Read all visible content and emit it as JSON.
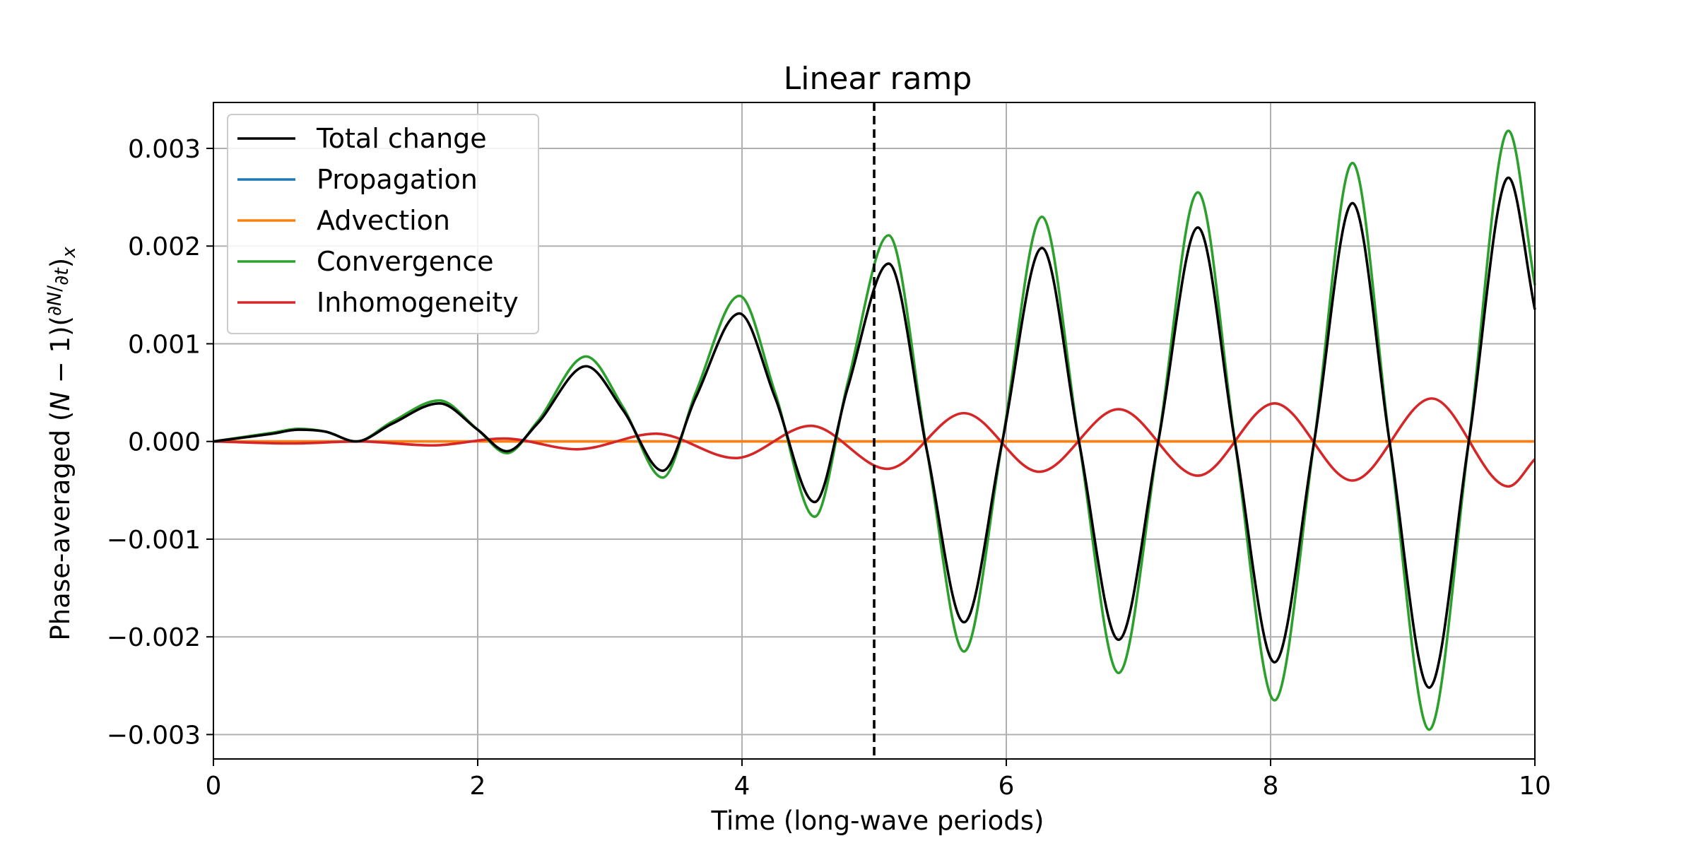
{
  "chart_data": {
    "type": "line",
    "title": "Linear ramp",
    "xlabel": "Time (long-wave periods)",
    "ylabel": "Phase-averaged (N − 1)(∂N/∂t)ₓ",
    "xlim": [
      0,
      10
    ],
    "ylim": [
      -0.00325,
      0.00347
    ],
    "xticks": [
      0,
      2,
      4,
      6,
      8,
      10
    ],
    "xtick_labels": [
      "0",
      "2",
      "4",
      "6",
      "8",
      "10"
    ],
    "yticks": [
      -0.003,
      -0.002,
      -0.001,
      0.0,
      0.001,
      0.002,
      0.003
    ],
    "ytick_labels": [
      "−0.003",
      "−0.002",
      "−0.001",
      "0.000",
      "0.001",
      "0.002",
      "0.003"
    ],
    "grid": true,
    "legend_position": "upper-left",
    "vline": {
      "x": 5,
      "style": "dashed",
      "color": "#000000"
    },
    "series": [
      {
        "name": "Total change",
        "color": "#000000",
        "x": [
          0,
          0.45,
          0.64,
          0.85,
          1.08,
          1.35,
          1.71,
          2.0,
          2.22,
          2.45,
          2.82,
          3.1,
          3.4,
          3.65,
          3.98,
          4.25,
          4.55,
          4.8,
          5.11,
          5.4,
          5.68,
          5.97,
          6.27,
          6.55,
          6.85,
          7.15,
          7.45,
          7.73,
          8.03,
          8.33,
          8.62,
          8.9,
          9.2,
          9.5,
          9.8,
          10.0
        ],
        "y": [
          0,
          8e-05,
          0.00012,
          0.0001,
          0.0,
          0.00018,
          0.00039,
          0.00012,
          -0.0001,
          0.00018,
          0.00077,
          0.00032,
          -0.0003,
          0.00045,
          0.00131,
          0.00045,
          -0.00062,
          0.00055,
          0.00182,
          -0.0001,
          -0.00185,
          0.0,
          0.00198,
          0.0,
          -0.00203,
          0.0,
          0.00219,
          0.0,
          -0.00226,
          0.0,
          0.00244,
          0.0,
          -0.00252,
          0.0,
          0.0027,
          0.00135
        ]
      },
      {
        "name": "Propagation",
        "color": "#1f77b4",
        "x": [
          0,
          10
        ],
        "y": [
          0,
          0
        ]
      },
      {
        "name": "Advection",
        "color": "#ff7f0e",
        "x": [
          0,
          1,
          2,
          3,
          4,
          5,
          6,
          7,
          8,
          9,
          10
        ],
        "y": [
          0,
          0,
          0,
          0,
          0,
          0,
          0,
          0,
          0,
          0,
          0
        ]
      },
      {
        "name": "Convergence",
        "color": "#2ca02c",
        "x": [
          0,
          0.45,
          0.64,
          0.85,
          1.08,
          1.35,
          1.71,
          2.0,
          2.22,
          2.45,
          2.82,
          3.1,
          3.4,
          3.65,
          3.98,
          4.25,
          4.55,
          4.8,
          5.11,
          5.4,
          5.68,
          5.97,
          6.27,
          6.55,
          6.85,
          7.15,
          7.45,
          7.73,
          8.03,
          8.33,
          8.62,
          8.9,
          9.2,
          9.5,
          9.8,
          10.0
        ],
        "y": [
          0,
          9e-05,
          0.00013,
          0.0001,
          0.0,
          0.0002,
          0.00042,
          0.00012,
          -0.00012,
          0.0002,
          0.00087,
          0.00035,
          -0.00037,
          0.0005,
          0.00149,
          0.0005,
          -0.00077,
          0.0006,
          0.00211,
          -0.0001,
          -0.00215,
          0.0,
          0.0023,
          0.0,
          -0.00237,
          0.0,
          0.00255,
          0.0,
          -0.00265,
          0.0,
          0.00285,
          0.0,
          -0.00295,
          0.0,
          0.00318,
          0.0016
        ]
      },
      {
        "name": "Inhomogeneity",
        "color": "#d62728",
        "x": [
          0,
          0.6,
          1.1,
          1.65,
          2.2,
          2.75,
          3.35,
          3.95,
          4.52,
          5.1,
          5.68,
          6.25,
          6.85,
          7.45,
          8.03,
          8.62,
          9.22,
          9.8,
          10.0
        ],
        "y": [
          0,
          -2e-05,
          0.0,
          -4e-05,
          3e-05,
          -8e-05,
          8e-05,
          -0.00017,
          0.00016,
          -0.00028,
          0.00029,
          -0.00031,
          0.00033,
          -0.00035,
          0.00039,
          -0.0004,
          0.00044,
          -0.00046,
          -0.00018
        ]
      }
    ]
  }
}
